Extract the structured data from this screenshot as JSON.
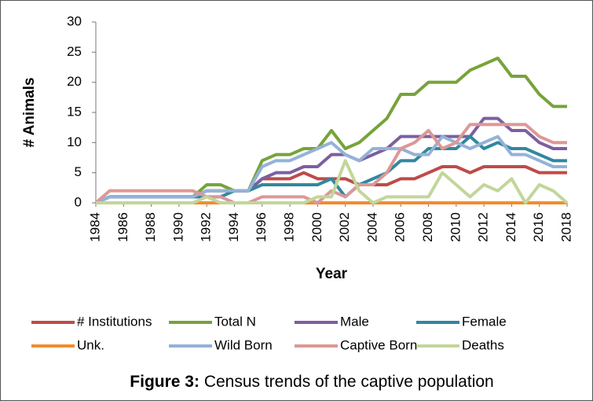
{
  "chart_data": {
    "type": "line",
    "x_label": "Year",
    "y_label": "# Animals",
    "caption_label": "Figure 3:",
    "caption_text": "Census trends of the captive population",
    "x": [
      1984,
      1985,
      1986,
      1987,
      1988,
      1989,
      1990,
      1991,
      1992,
      1993,
      1994,
      1995,
      1996,
      1997,
      1998,
      1999,
      2000,
      2001,
      2002,
      2003,
      2004,
      2005,
      2006,
      2007,
      2008,
      2009,
      2010,
      2011,
      2012,
      2013,
      2014,
      2015,
      2016,
      2017,
      2018
    ],
    "xlim": [
      1984,
      2018
    ],
    "xticks": [
      1984,
      1986,
      1988,
      1990,
      1992,
      1994,
      1996,
      1998,
      2000,
      2002,
      2004,
      2006,
      2008,
      2010,
      2012,
      2014,
      2016,
      2018
    ],
    "ylim": [
      0,
      30
    ],
    "yticks": [
      0,
      5,
      10,
      15,
      20,
      25,
      30
    ],
    "legend": "bottom",
    "series": [
      {
        "name": "# Institutions",
        "color": "#be4b48",
        "values": [
          0,
          1,
          1,
          1,
          1,
          1,
          1,
          1,
          2,
          2,
          2,
          2,
          4,
          4,
          4,
          5,
          4,
          4,
          4,
          3,
          3,
          3,
          4,
          4,
          5,
          6,
          6,
          5,
          6,
          6,
          6,
          6,
          5,
          5,
          5
        ]
      },
      {
        "name": "Total N",
        "color": "#77a33a",
        "values": [
          0,
          1,
          1,
          1,
          1,
          1,
          1,
          1,
          3,
          3,
          2,
          2,
          7,
          8,
          8,
          9,
          9,
          12,
          9,
          10,
          12,
          14,
          18,
          18,
          20,
          20,
          20,
          22,
          23,
          24,
          21,
          21,
          18,
          16,
          16
        ]
      },
      {
        "name": "Male",
        "color": "#7d5fa0",
        "values": [
          0,
          1,
          1,
          1,
          1,
          1,
          1,
          1,
          2,
          2,
          2,
          2,
          4,
          5,
          5,
          6,
          6,
          8,
          8,
          7,
          8,
          9,
          11,
          11,
          11,
          11,
          11,
          11,
          14,
          14,
          12,
          12,
          10,
          9,
          9
        ]
      },
      {
        "name": "Female",
        "color": "#31879e",
        "values": [
          0,
          1,
          1,
          1,
          1,
          1,
          1,
          1,
          1,
          1,
          2,
          2,
          3,
          3,
          3,
          3,
          3,
          4,
          1,
          3,
          4,
          5,
          7,
          7,
          9,
          9,
          9,
          11,
          9,
          10,
          9,
          9,
          8,
          7,
          7
        ]
      },
      {
        "name": "Unk.",
        "color": "#f28c2e",
        "values": [
          0,
          0,
          0,
          0,
          0,
          0,
          0,
          0,
          0,
          0,
          0,
          0,
          0,
          0,
          0,
          0,
          0,
          0,
          0,
          0,
          0,
          0,
          0,
          0,
          0,
          0,
          0,
          0,
          0,
          0,
          0,
          0,
          0,
          0,
          0
        ]
      },
      {
        "name": "Wild Born",
        "color": "#94b2d8",
        "values": [
          0,
          1,
          1,
          1,
          1,
          1,
          1,
          1,
          2,
          2,
          2,
          2,
          6,
          7,
          7,
          8,
          9,
          10,
          8,
          7,
          9,
          9,
          9,
          8,
          8,
          11,
          10,
          9,
          10,
          11,
          8,
          8,
          7,
          6,
          6
        ]
      },
      {
        "name": "Captive Born",
        "color": "#dc9896",
        "values": [
          0,
          2,
          2,
          2,
          2,
          2,
          2,
          2,
          1,
          1,
          0,
          0,
          1,
          1,
          1,
          1,
          0,
          2,
          1,
          3,
          3,
          5,
          9,
          10,
          12,
          9,
          10,
          13,
          13,
          13,
          13,
          13,
          11,
          10,
          10
        ]
      },
      {
        "name": "Deaths",
        "color": "#c2d69a",
        "values": [
          0,
          0,
          0,
          0,
          0,
          0,
          0,
          0,
          1,
          0,
          0,
          0,
          0,
          0,
          0,
          0,
          1,
          1,
          7,
          2,
          0,
          1,
          1,
          1,
          1,
          5,
          3,
          1,
          3,
          2,
          4,
          0,
          3,
          2,
          0
        ]
      }
    ]
  }
}
